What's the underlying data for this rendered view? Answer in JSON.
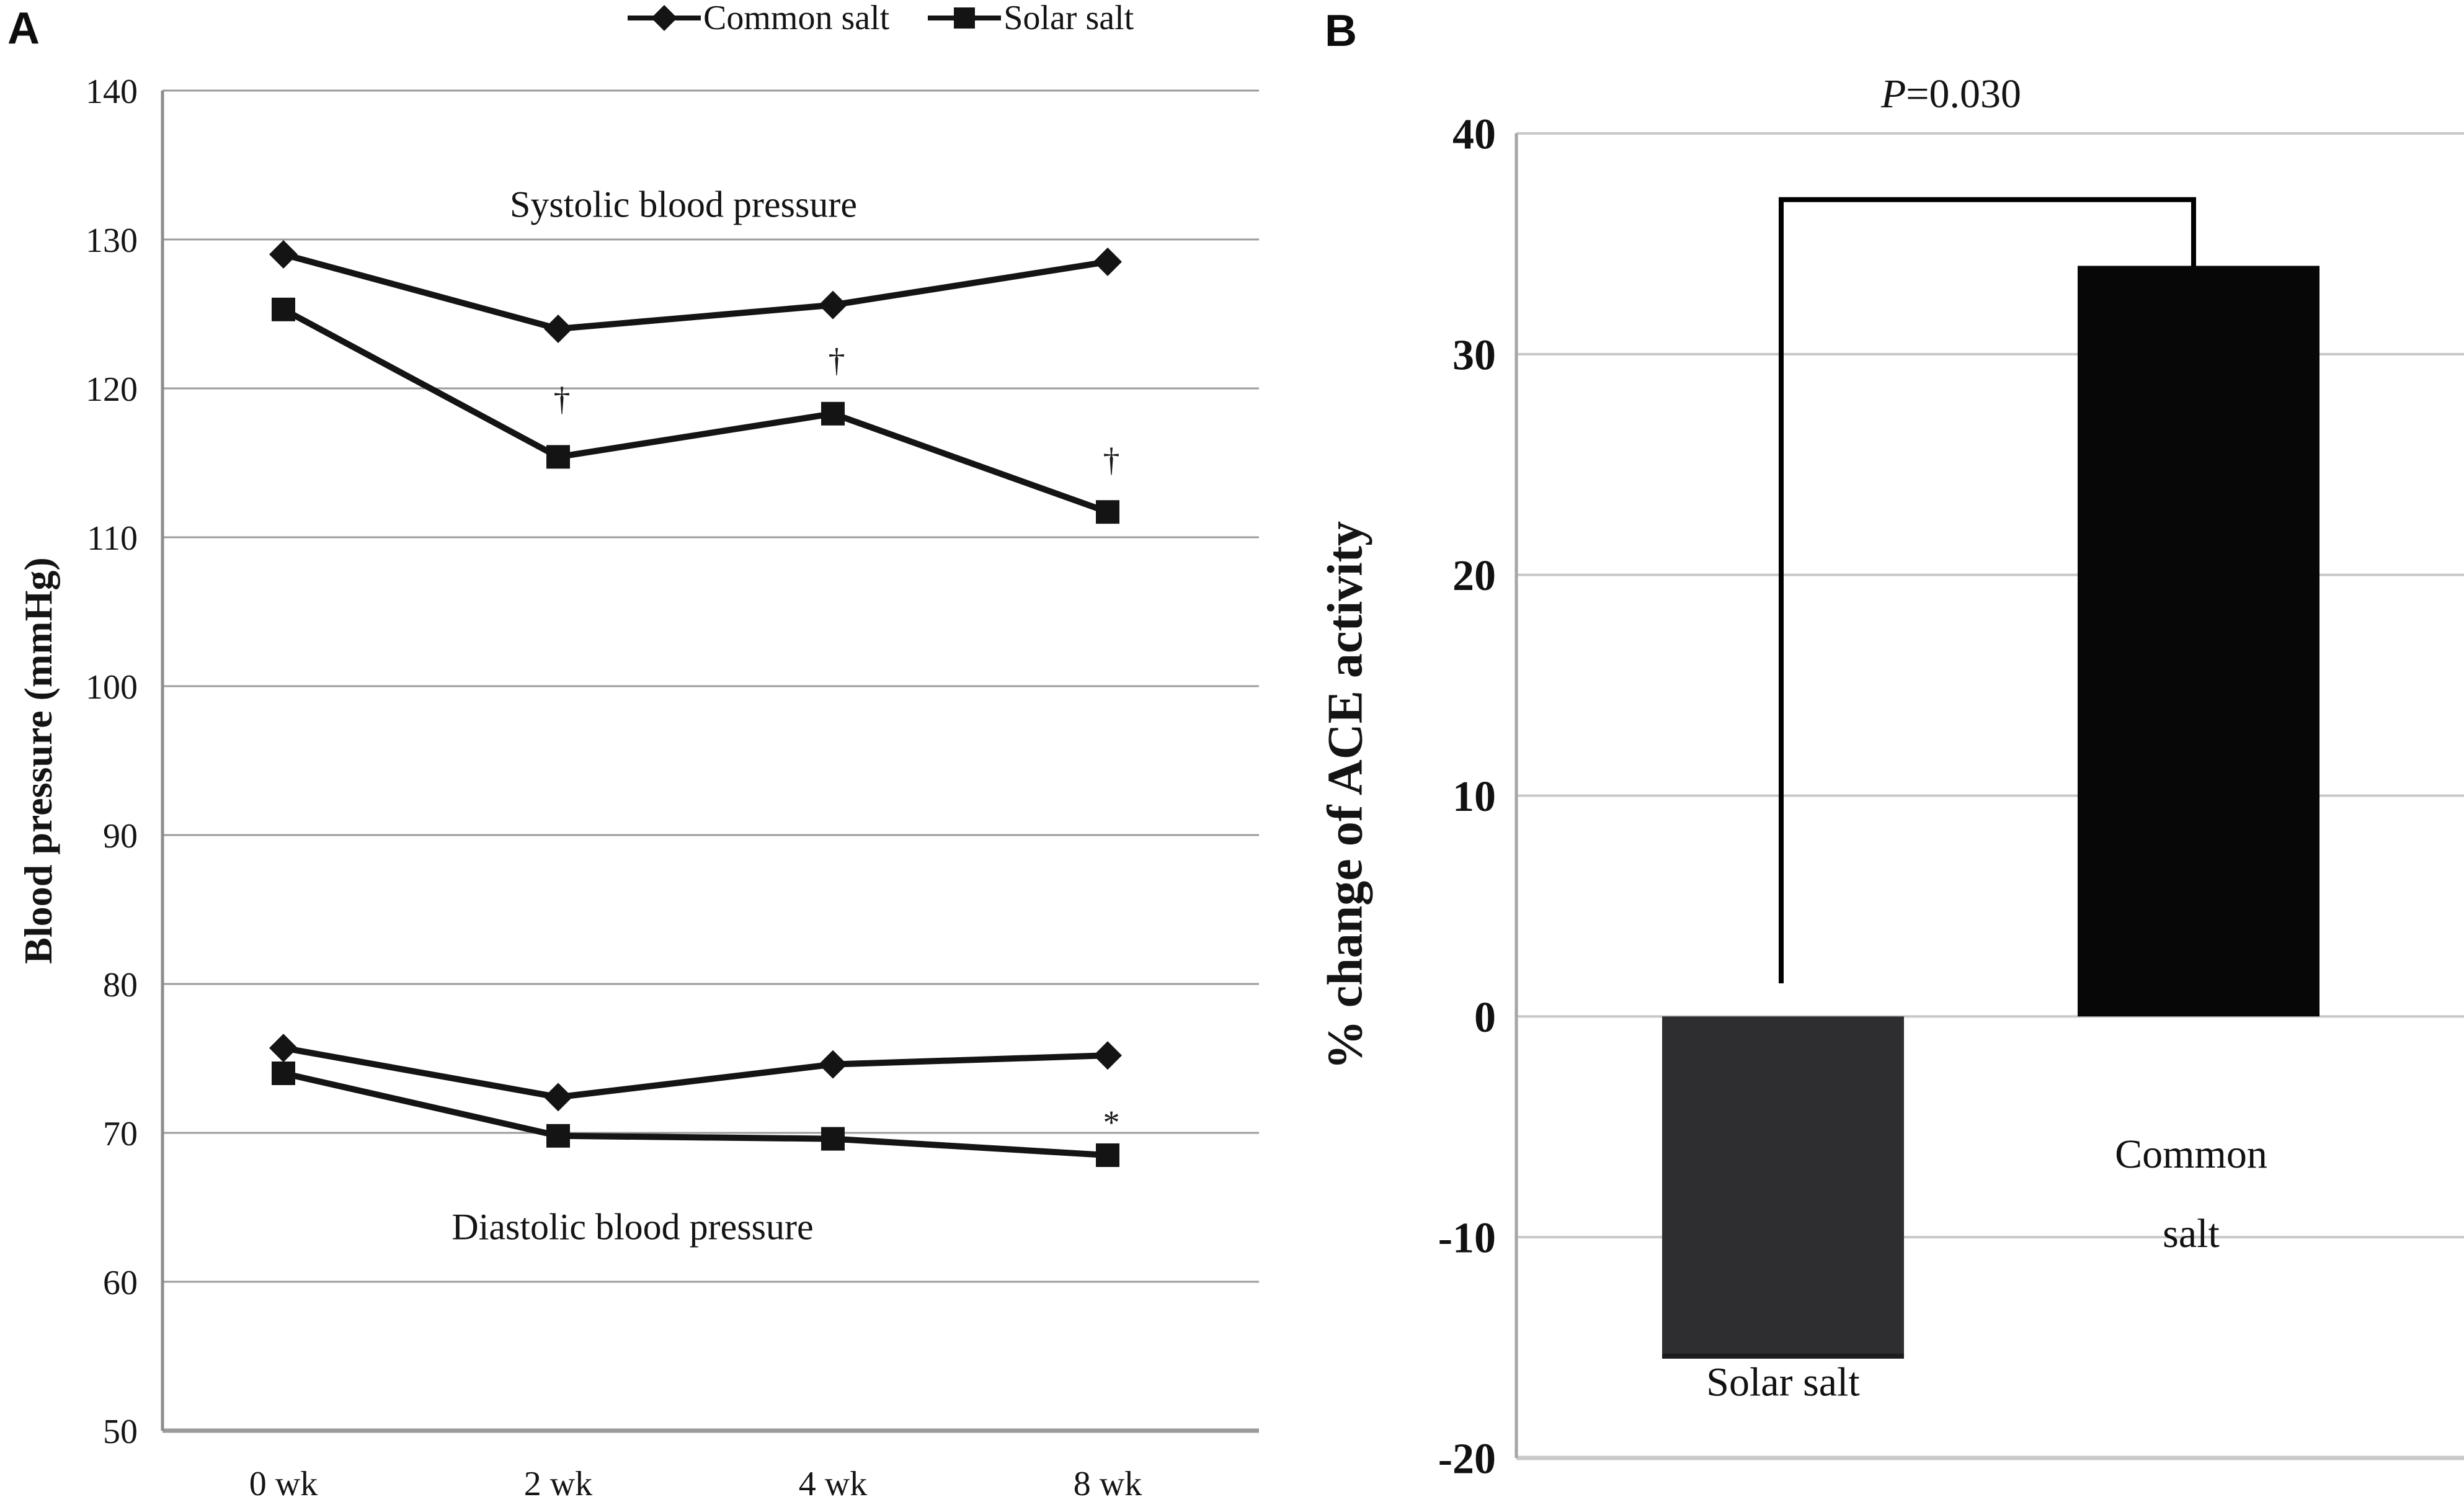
{
  "figure": {
    "panel_a_letter": "A",
    "panel_b_letter": "B"
  },
  "legend": {
    "items": [
      {
        "label": "Common salt",
        "marker": "diamond"
      },
      {
        "label": "Solar salt",
        "marker": "square"
      }
    ]
  },
  "chart_data": [
    {
      "id": "panel-a",
      "type": "line",
      "title_upper": "Systolic blood pressure",
      "title_lower": "Diastolic blood pressure",
      "ylabel": "Blood pressure (mmHg)",
      "x_categories": [
        "0 wk",
        "2 wk",
        "4 wk",
        "8 wk"
      ],
      "yticks": [
        140,
        130,
        120,
        110,
        100,
        90,
        80,
        70,
        60,
        50
      ],
      "ylim": [
        50,
        140
      ],
      "grid": true,
      "series": [
        {
          "name": "Common salt (systolic)",
          "marker": "diamond",
          "values": [
            129.0,
            124.0,
            125.6,
            128.5
          ]
        },
        {
          "name": "Solar salt (systolic)",
          "marker": "square",
          "values": [
            125.3,
            115.4,
            118.3,
            111.7
          ]
        },
        {
          "name": "Common salt (diastolic)",
          "marker": "diamond",
          "values": [
            75.7,
            72.4,
            74.6,
            75.2
          ]
        },
        {
          "name": "Solar salt (diastolic)",
          "marker": "square",
          "values": [
            74.0,
            69.8,
            69.6,
            68.5
          ]
        }
      ],
      "annotations": [
        {
          "text": "†",
          "x_index": 1,
          "y": 119.3
        },
        {
          "text": "†",
          "x_index": 2,
          "y": 121.9
        },
        {
          "text": "†",
          "x_index": 3,
          "y": 115.2
        },
        {
          "text": "*",
          "x_index": 3,
          "y": 70.7
        }
      ],
      "colors": {
        "line": "#141414",
        "grid": "#9b9b9b",
        "axis": "#8c8c8c"
      }
    },
    {
      "id": "panel-b",
      "type": "bar",
      "categories": [
        "Solar salt",
        "Common salt"
      ],
      "values": [
        -15.5,
        34.0
      ],
      "bar_colors": [
        "#2e2e30",
        "#070707"
      ],
      "ylabel": "% change of ACE activity",
      "yticks": [
        40,
        30,
        20,
        10,
        0,
        -10,
        -20
      ],
      "ylim": [
        -20,
        40
      ],
      "grid": true,
      "significance": {
        "p_italic": "P",
        "p_rest": "=0.030",
        "bracket_top": 37,
        "left_drop_to": 1.5,
        "right_drop_to": 34.0
      },
      "colors": {
        "grid": "#c8c8c8",
        "axis": "#a5a5a5",
        "bracket": "#000000"
      }
    }
  ]
}
